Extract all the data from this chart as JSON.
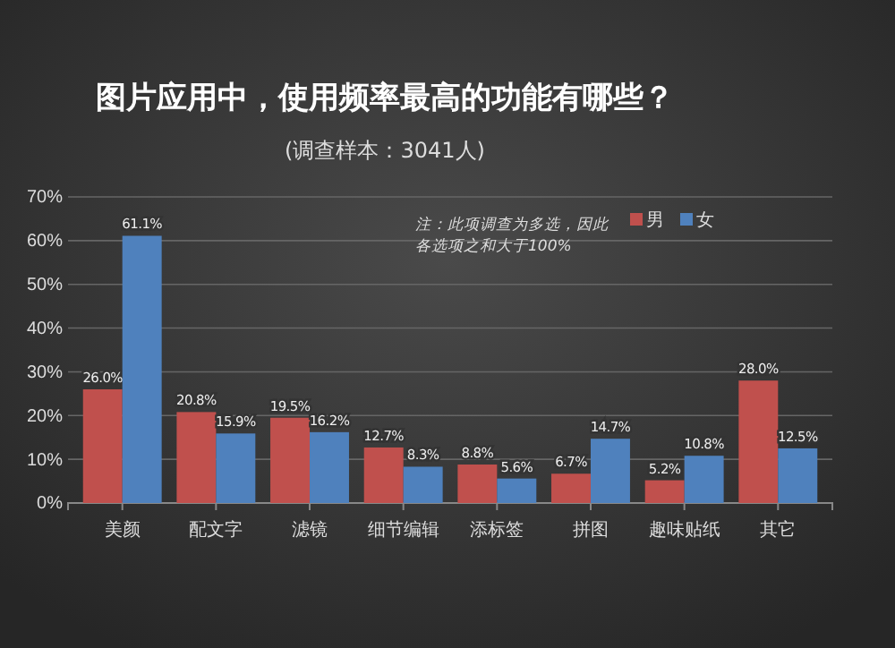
{
  "chart_data": {
    "type": "bar",
    "title": "图片应用中，使用频率最高的功能有哪些？",
    "subtitle": "(调查样本：3041人)",
    "categories": [
      "美颜",
      "配文字",
      "滤镜",
      "细节编辑",
      "添标签",
      "拼图",
      "趣味贴纸",
      "其它"
    ],
    "series": [
      {
        "name": "男",
        "color": "#c0504d",
        "values": [
          26.0,
          20.8,
          19.5,
          12.7,
          8.8,
          6.7,
          5.2,
          28.0
        ],
        "value_labels": [
          "26.0%",
          "20.8%",
          "19.5%",
          "12.7%",
          "8.8%",
          "6.7%",
          "5.2%",
          "28.0%"
        ]
      },
      {
        "name": "女",
        "color": "#4f81bd",
        "values": [
          61.1,
          15.9,
          16.2,
          8.3,
          5.6,
          14.7,
          10.8,
          12.5
        ],
        "value_labels": [
          "61.1%",
          "15.9%",
          "16.2%",
          "8.3%",
          "5.6%",
          "14.7%",
          "10.8%",
          "12.5%"
        ]
      }
    ],
    "ylim": [
      0,
      70
    ],
    "yticks": [
      {
        "value": 0,
        "label": "0%"
      },
      {
        "value": 10,
        "label": "10%"
      },
      {
        "value": 20,
        "label": "20%"
      },
      {
        "value": 30,
        "label": "30%"
      },
      {
        "value": 40,
        "label": "40%"
      },
      {
        "value": 50,
        "label": "50%"
      },
      {
        "value": 60,
        "label": "60%"
      },
      {
        "value": 70,
        "label": "70%"
      }
    ],
    "grid": "y",
    "legend": "top right",
    "annotations": [
      "注：此项调查为多选，因此各选项之和大于100%"
    ]
  }
}
